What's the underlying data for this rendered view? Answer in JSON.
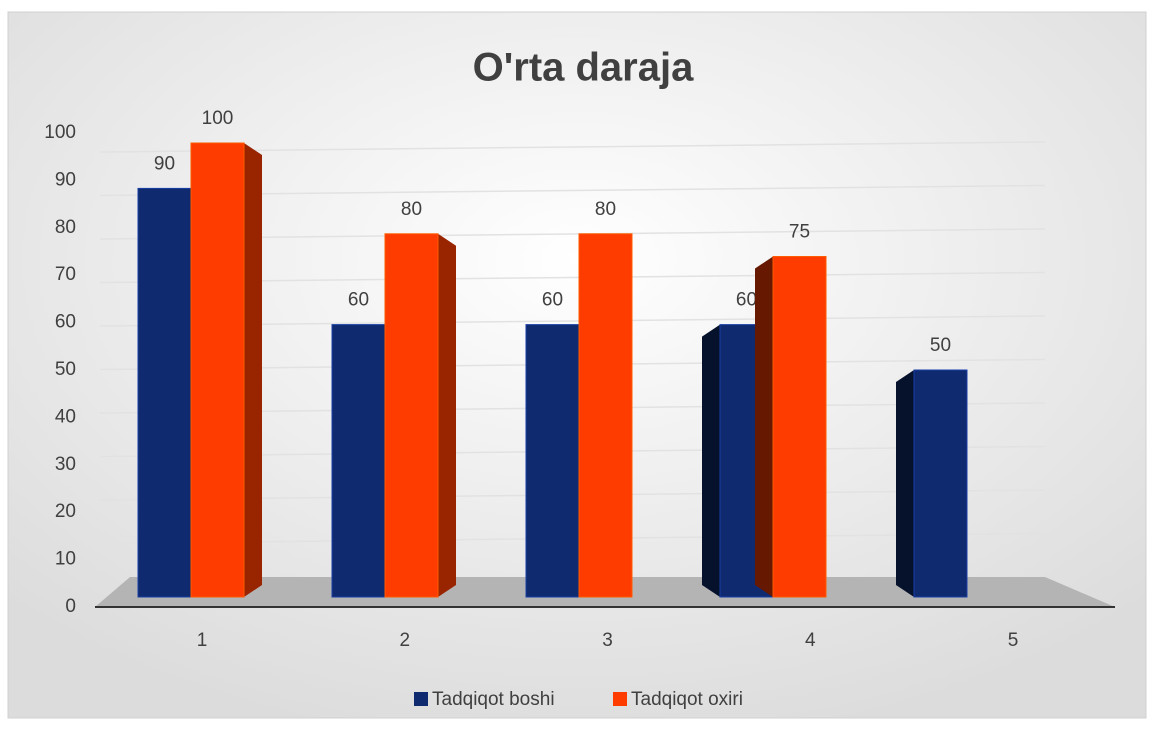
{
  "chart_data": {
    "type": "bar3d",
    "title": "O'rta daraja",
    "categories": [
      "1",
      "2",
      "3",
      "4",
      "5"
    ],
    "series": [
      {
        "name": "Tadqiqot boshi",
        "color": "#0f2a6e",
        "values": [
          90,
          60,
          60,
          60,
          50
        ]
      },
      {
        "name": "Tadqiqot oxiri",
        "color": "#ff3c00",
        "values": [
          100,
          80,
          80,
          75,
          null
        ]
      }
    ],
    "ylim": [
      0,
      100
    ],
    "yticks": [
      0,
      10,
      20,
      30,
      40,
      50,
      60,
      70,
      80,
      90,
      100
    ],
    "grid": true,
    "legend": "bottom"
  }
}
